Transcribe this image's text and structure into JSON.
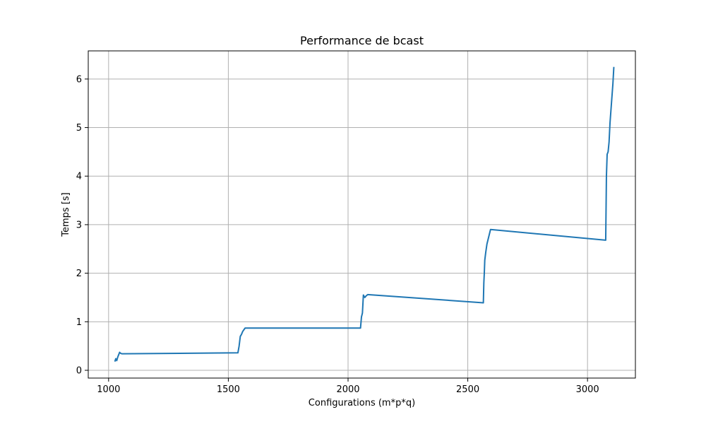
{
  "chart_data": {
    "type": "line",
    "title": "Performance de bcast",
    "xlabel": "Configurations (m*p*q)",
    "ylabel": "Temps [s]",
    "xlim": [
      915,
      3200
    ],
    "ylim": [
      -0.16,
      6.58
    ],
    "xticks": [
      1000,
      1500,
      2000,
      2500,
      3000
    ],
    "yticks": [
      0,
      1,
      2,
      3,
      4,
      5,
      6
    ],
    "grid": true,
    "series": [
      {
        "color": "#1f77b4",
        "x": [
          1026,
          1030,
          1034,
          1038,
          1042,
          1046,
          1050,
          1056,
          1540,
          1545,
          1550,
          1555,
          1560,
          1570,
          2052,
          2056,
          2060,
          2064,
          2070,
          2075,
          2082,
          2565,
          2567,
          2569,
          2571,
          2575,
          2580,
          2585,
          2595,
          3076,
          3079,
          3082,
          3086,
          3090,
          3094,
          3100,
          3106,
          3110
        ],
        "y": [
          0.18,
          0.24,
          0.2,
          0.27,
          0.32,
          0.37,
          0.35,
          0.34,
          0.36,
          0.5,
          0.7,
          0.74,
          0.8,
          0.87,
          0.87,
          1.1,
          1.18,
          1.55,
          1.5,
          1.53,
          1.56,
          1.39,
          1.8,
          2.0,
          2.27,
          2.43,
          2.6,
          2.7,
          2.9,
          2.68,
          4.0,
          4.45,
          4.5,
          4.7,
          5.1,
          5.5,
          5.9,
          6.25
        ]
      }
    ]
  }
}
